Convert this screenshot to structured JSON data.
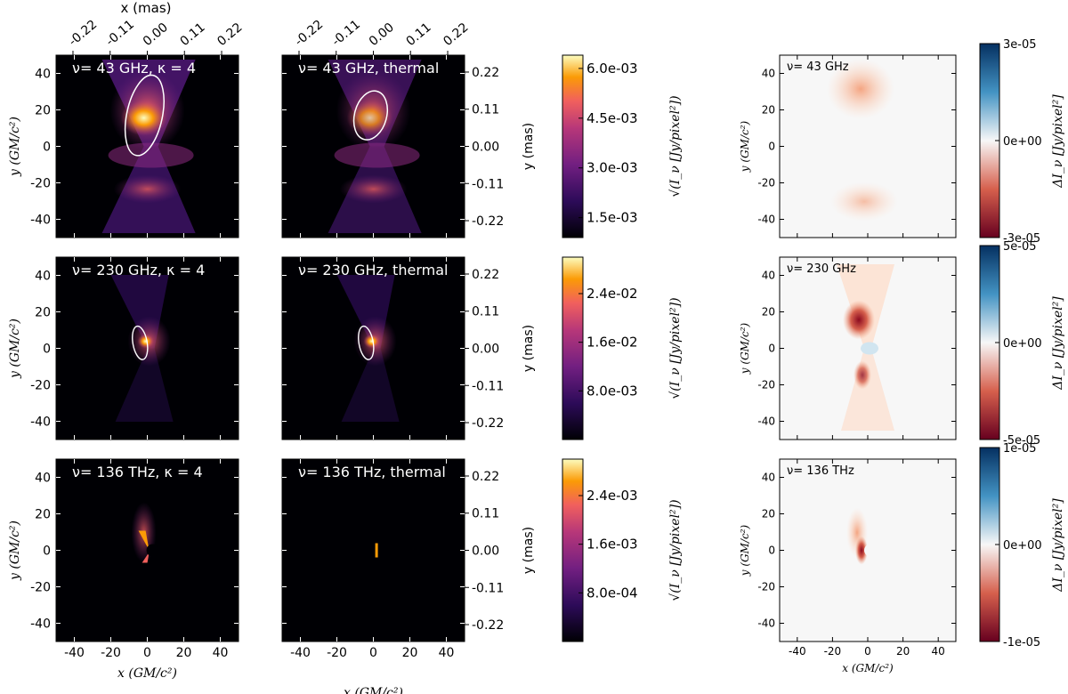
{
  "figure": {
    "top_axis_label": "x (mas)",
    "top_ticks": [
      "-0.22",
      "-0.11",
      "0.00",
      "0.11",
      "0.22"
    ],
    "x_axis_label": "x (GM/c²)",
    "y_axis_label": "y (GM/c²)",
    "mas_axis_label": "y (mas)",
    "mas_ticks": [
      "0.22",
      "0.11",
      "0.00",
      "-0.11",
      "-0.22"
    ],
    "xticks": [
      "-40",
      "-20",
      "0",
      "20",
      "40"
    ],
    "yticks": [
      "40",
      "20",
      "0",
      "-20",
      "-40"
    ],
    "intensity_colorbar_label": "√(I_ν [Jy/pixel²])",
    "difference_colorbar_label": "ΔI_ν [Jy/pixel²]"
  },
  "chart_data": [
    {
      "type": "heatmap",
      "rows": [
        {
          "panels": [
            {
              "title": "ν= 43 GHz, κ = 4"
            },
            {
              "title": "ν= 43 GHz, thermal"
            }
          ],
          "colorbar_ticks": [
            "6.0e-03",
            "4.5e-03",
            "3.0e-03",
            "1.5e-03"
          ],
          "colorbar_range": [
            0.0009,
            0.0064
          ],
          "difference": {
            "title": "ν= 43 GHz",
            "ticks": [
              "3e-05",
              "0e+00",
              "-3e-05"
            ],
            "range": [
              -3e-05,
              3e-05
            ]
          }
        },
        {
          "panels": [
            {
              "title": "ν= 230 GHz, κ = 4"
            },
            {
              "title": "ν= 230 GHz, thermal"
            }
          ],
          "colorbar_ticks": [
            "2.4e-02",
            "1.6e-02",
            "8.0e-03"
          ],
          "colorbar_range": [
            0.0,
            0.03
          ],
          "difference": {
            "title": "ν= 230 GHz",
            "ticks": [
              "5e-05",
              "0e+00",
              "-5e-05"
            ],
            "range": [
              -5e-05,
              5e-05
            ]
          }
        },
        {
          "panels": [
            {
              "title": "ν= 136 THz, κ = 4"
            },
            {
              "title": "ν= 136 THz, thermal"
            }
          ],
          "colorbar_ticks": [
            "2.4e-03",
            "1.6e-03",
            "8.0e-04"
          ],
          "colorbar_range": [
            0.0,
            0.003
          ],
          "difference": {
            "title": "ν= 136 THz",
            "ticks": [
              "1e-05",
              "0e+00",
              "-1e-05"
            ],
            "range": [
              -1e-05,
              1e-05
            ]
          }
        }
      ],
      "x_range": [
        -50,
        50
      ],
      "y_range": [
        -50,
        50
      ],
      "mas_range": [
        -0.27,
        0.27
      ],
      "intensity_colormap": "inferno",
      "difference_colormap": "RdBu"
    }
  ]
}
